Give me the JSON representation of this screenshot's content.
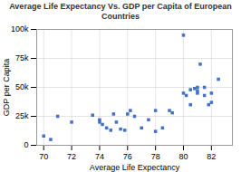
{
  "chart_data": {
    "type": "scatter",
    "title": "Average Life Expectancy Vs. GDP per Capita of European Countries",
    "xlabel": "Average Life Expectancy",
    "ylabel": "GDP per Capita",
    "x": [
      70,
      70.5,
      71,
      72,
      73.5,
      74,
      74,
      74.2,
      74.5,
      74.8,
      75,
      75.2,
      75.5,
      75.8,
      76,
      76.2,
      76.5,
      77,
      77.5,
      78,
      78,
      78.5,
      79,
      79.2,
      80,
      80,
      80.2,
      80.5,
      80.5,
      80.8,
      81,
      81,
      81,
      81.2,
      81.5,
      81.5,
      81.8,
      82,
      82,
      82.5
    ],
    "values": [
      8000,
      5000,
      25000,
      20000,
      26000,
      20000,
      22000,
      18000,
      15000,
      13000,
      27000,
      20000,
      14000,
      13000,
      27000,
      30000,
      25000,
      15000,
      22000,
      30000,
      12000,
      15000,
      30000,
      28000,
      95000,
      45000,
      43000,
      48000,
      35000,
      49000,
      47000,
      50000,
      45000,
      70000,
      50000,
      43000,
      35000,
      45000,
      37000,
      57000
    ],
    "color": "#4472c4",
    "marker": "square",
    "xlim": [
      69.5,
      83.5
    ],
    "ylim": [
      0,
      100000
    ],
    "xticks": [
      70,
      72,
      74,
      76,
      78,
      80,
      82
    ],
    "yticks": [
      0,
      {
        "value": 25000,
        "label": "25k"
      },
      {
        "value": 50000,
        "label": "50k"
      },
      {
        "value": 75000,
        "label": "75k"
      },
      {
        "value": 100000,
        "label": "100k"
      }
    ],
    "grid": true
  }
}
